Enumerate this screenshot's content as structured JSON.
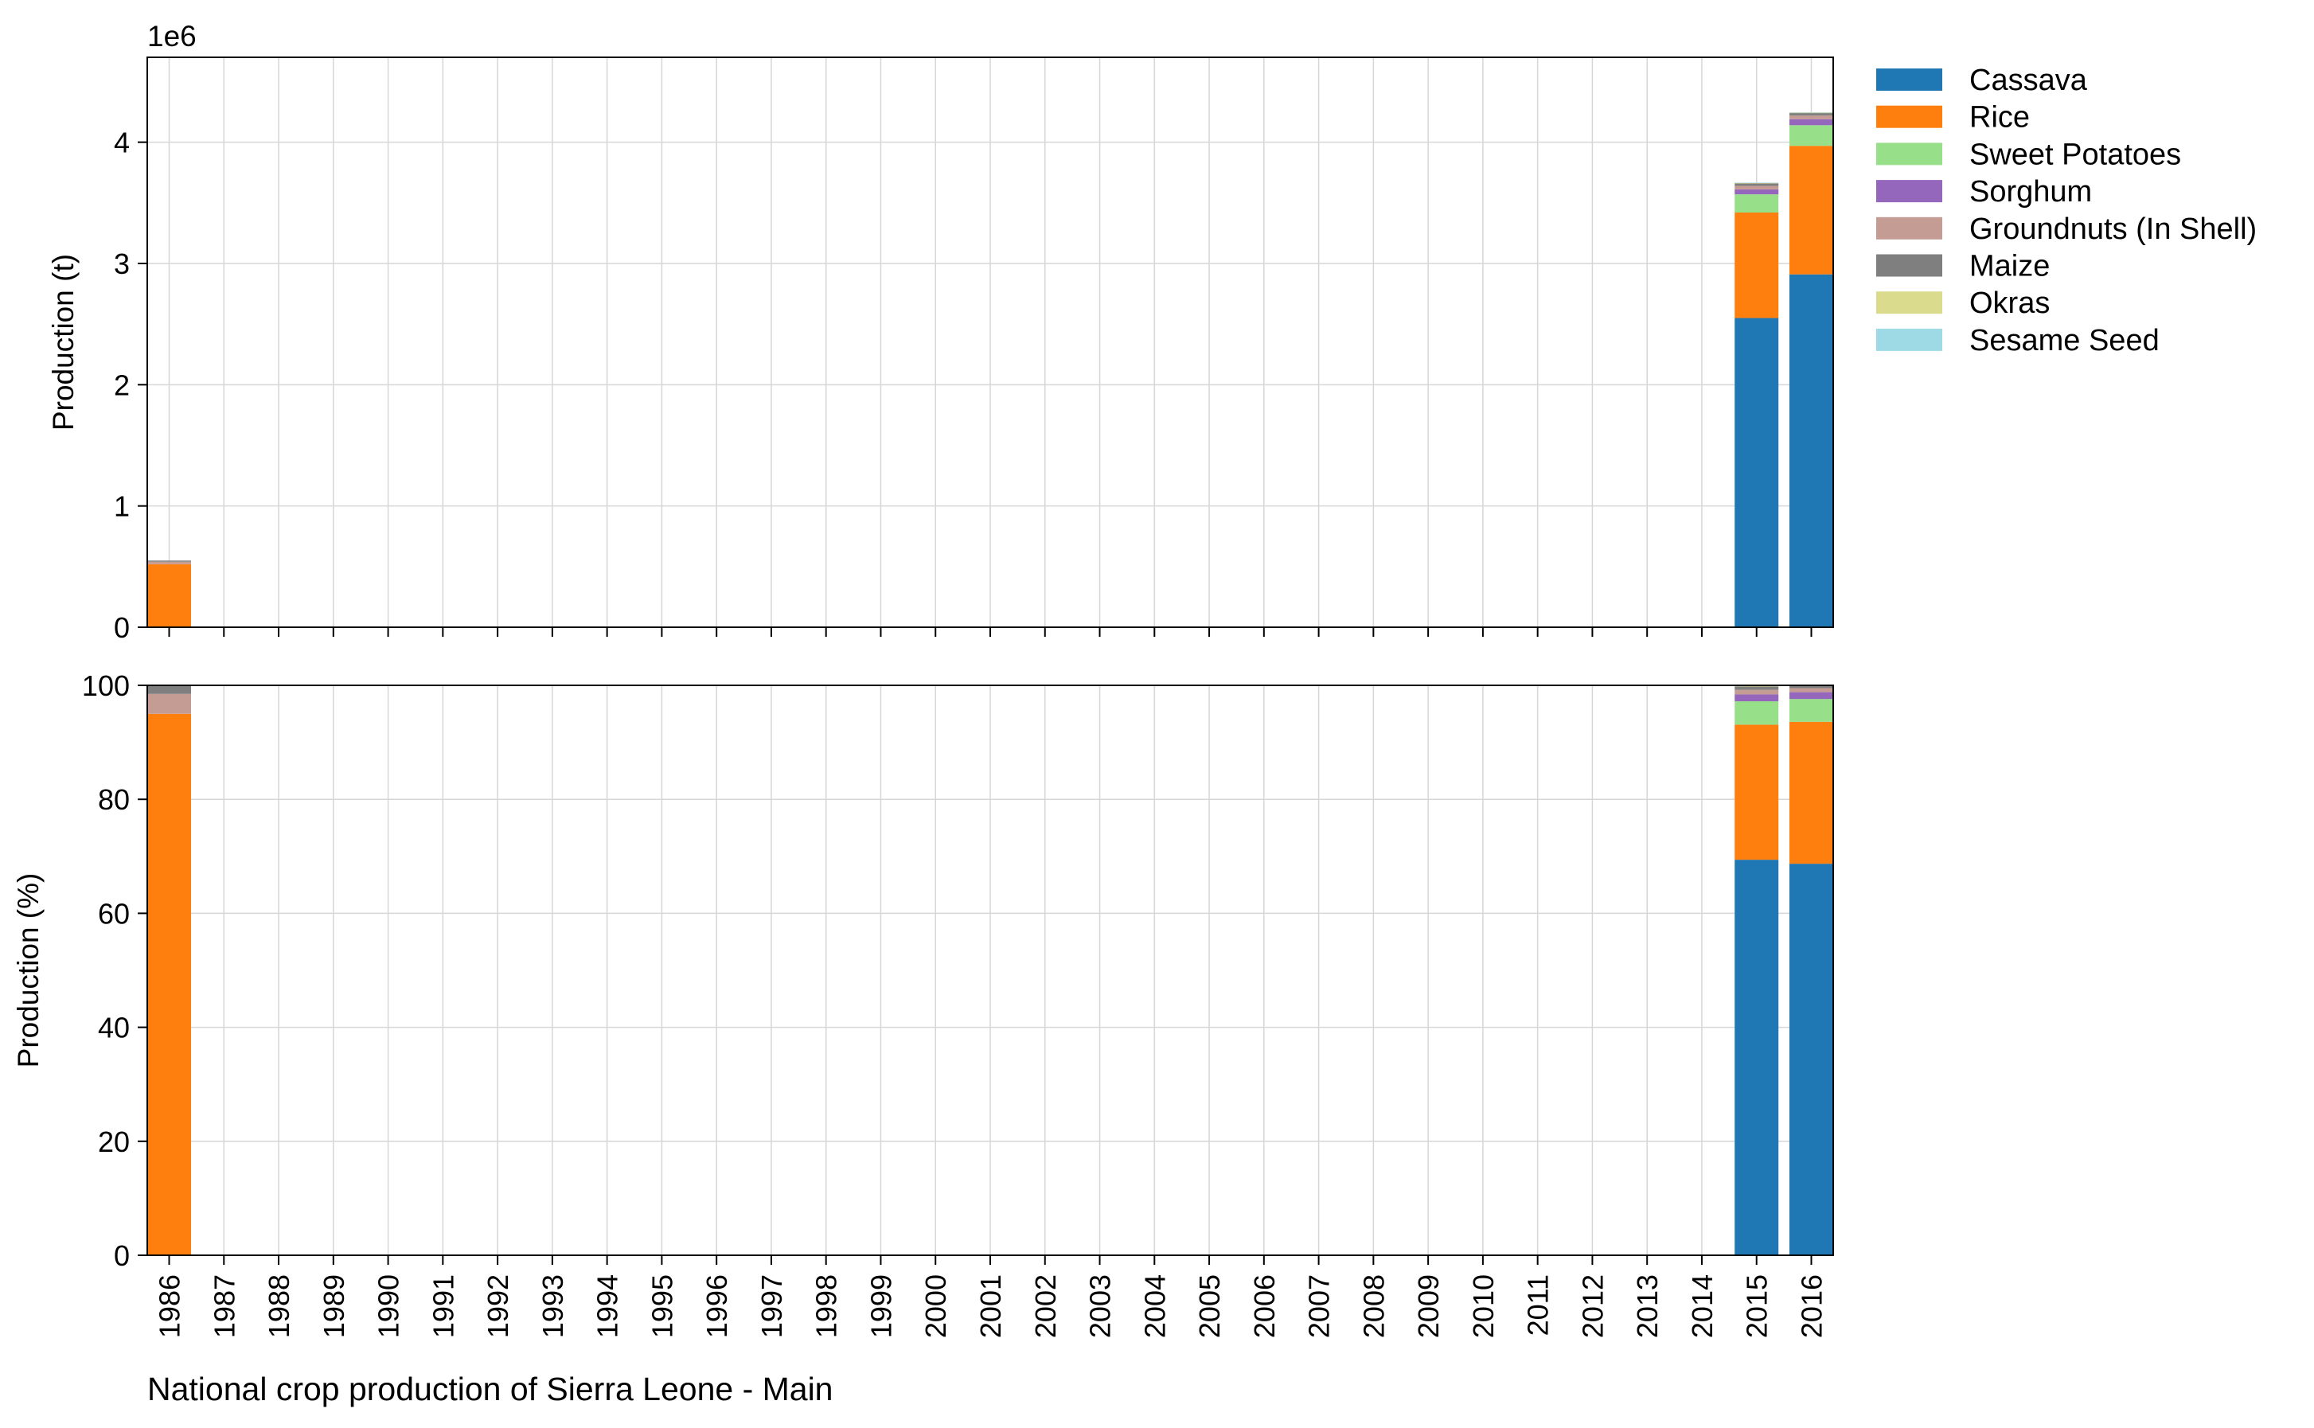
{
  "caption": "National crop production of Sierra Leone - Main",
  "chart_data": [
    {
      "type": "bar",
      "stacked": true,
      "ylabel": "Production (t)",
      "offset_label": "1e6",
      "ylim": [
        0,
        4.7
      ],
      "yticks": [
        0,
        1,
        2,
        3,
        4
      ],
      "grid": true,
      "legend": "outside-top-right",
      "categories": [
        "1986",
        "1987",
        "1988",
        "1989",
        "1990",
        "1991",
        "1992",
        "1993",
        "1994",
        "1995",
        "1996",
        "1997",
        "1998",
        "1999",
        "2000",
        "2001",
        "2002",
        "2003",
        "2004",
        "2005",
        "2006",
        "2007",
        "2008",
        "2009",
        "2010",
        "2011",
        "2012",
        "2013",
        "2014",
        "2015",
        "2016"
      ],
      "series": [
        {
          "name": "Cassava",
          "color": "#1f77b4",
          "values": {
            "1986": 0,
            "2015": 2.55,
            "2016": 2.91
          }
        },
        {
          "name": "Rice",
          "color": "#ff7f0e",
          "values": {
            "1986": 0.52,
            "2015": 0.87,
            "2016": 1.06
          }
        },
        {
          "name": "Sweet Potatoes",
          "color": "#98df8a",
          "values": {
            "1986": 0,
            "2015": 0.15,
            "2016": 0.17
          }
        },
        {
          "name": "Sorghum",
          "color": "#9467bd",
          "values": {
            "1986": 0,
            "2015": 0.04,
            "2016": 0.05
          }
        },
        {
          "name": "Groundnuts (In Shell)",
          "color": "#c49c94",
          "values": {
            "1986": 0.02,
            "2015": 0.03,
            "2016": 0.03
          }
        },
        {
          "name": "Maize",
          "color": "#7f7f7f",
          "values": {
            "1986": 0.01,
            "2015": 0.02,
            "2016": 0.02
          }
        },
        {
          "name": "Okras",
          "color": "#dbdb8d",
          "values": {
            "1986": 0,
            "2015": 0.005,
            "2016": 0.005
          }
        },
        {
          "name": "Sesame Seed",
          "color": "#9edae5",
          "values": {
            "1986": 0,
            "2015": 0.002,
            "2016": 0.002
          }
        }
      ]
    },
    {
      "type": "bar",
      "stacked": true,
      "ylabel": "Production (%)",
      "ylim": [
        0,
        100
      ],
      "yticks": [
        0,
        20,
        40,
        60,
        80,
        100
      ],
      "grid": true,
      "categories": [
        "1986",
        "1987",
        "1988",
        "1989",
        "1990",
        "1991",
        "1992",
        "1993",
        "1994",
        "1995",
        "1996",
        "1997",
        "1998",
        "1999",
        "2000",
        "2001",
        "2002",
        "2003",
        "2004",
        "2005",
        "2006",
        "2007",
        "2008",
        "2009",
        "2010",
        "2011",
        "2012",
        "2013",
        "2014",
        "2015",
        "2016"
      ],
      "series": [
        {
          "name": "Cassava",
          "color": "#1f77b4",
          "values": {
            "1986": 0,
            "2015": 69.4,
            "2016": 68.7
          }
        },
        {
          "name": "Rice",
          "color": "#ff7f0e",
          "values": {
            "1986": 95.0,
            "2015": 23.7,
            "2016": 24.9
          }
        },
        {
          "name": "Sweet Potatoes",
          "color": "#98df8a",
          "values": {
            "1986": 0,
            "2015": 4.1,
            "2016": 4.0
          }
        },
        {
          "name": "Sorghum",
          "color": "#9467bd",
          "values": {
            "1986": 0,
            "2015": 1.2,
            "2016": 1.2
          }
        },
        {
          "name": "Groundnuts (In Shell)",
          "color": "#c49c94",
          "values": {
            "1986": 3.5,
            "2015": 0.8,
            "2016": 0.7
          }
        },
        {
          "name": "Maize",
          "color": "#7f7f7f",
          "values": {
            "1986": 1.5,
            "2015": 0.6,
            "2016": 0.4
          }
        },
        {
          "name": "Okras",
          "color": "#dbdb8d",
          "values": {
            "1986": 0,
            "2015": 0.15,
            "2016": 0.07
          }
        },
        {
          "name": "Sesame Seed",
          "color": "#9edae5",
          "values": {
            "1986": 0,
            "2015": 0.05,
            "2016": 0.03
          }
        }
      ]
    }
  ]
}
